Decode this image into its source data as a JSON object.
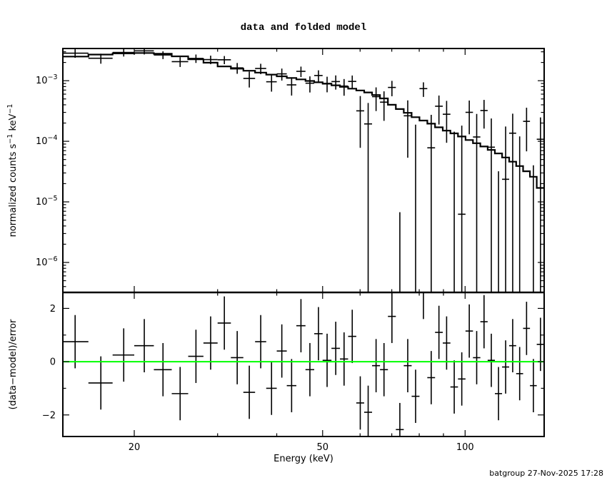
{
  "title": "data and folded model",
  "footer": "batgroup 27-Nov-2025 17:28",
  "colors": {
    "foreground": "#000000",
    "background": "#ffffff",
    "zero_line": "#00ff00"
  },
  "chart_data": {
    "type": "line",
    "title": "data and folded model",
    "xlabel": "Energy (keV)",
    "x_scale": "log",
    "x_range": [
      14.13,
      146.9
    ],
    "x_major_ticks": [
      20,
      50,
      100
    ],
    "x_minor_ticks": [
      30,
      40,
      60,
      70,
      80,
      90
    ],
    "panels": [
      {
        "name": "spectrum",
        "ylabel_parts": [
          {
            "t": "normalized counts s",
            "sup": false
          },
          {
            "t": "−1",
            "sup": true
          },
          {
            "t": " keV",
            "sup": false
          },
          {
            "t": "−1",
            "sup": true
          }
        ],
        "y_scale": "log",
        "y_range": [
          3.2e-07,
          0.0034
        ],
        "y_major_tick_exponents": [
          -3,
          -4,
          -5,
          -6
        ]
      },
      {
        "name": "residuals",
        "ylabel": "(data−model)/error",
        "y_scale": "linear",
        "y_range": [
          -2.81,
          2.6
        ],
        "y_major_ticks": [
          2,
          0,
          -2
        ],
        "y_minor_ticks": [
          1,
          -1
        ],
        "zero_line_color": "#00ff00",
        "residual_error": 1.0
      }
    ],
    "legend": "none",
    "grid": false,
    "bin_edges_keV": [
      14,
      16,
      18,
      20,
      22,
      24,
      26,
      28,
      30,
      32,
      34,
      36,
      38,
      40,
      42,
      44,
      46,
      48,
      50,
      52.2,
      54.4,
      56.6,
      58.9,
      61.2,
      63.6,
      66.1,
      68.7,
      71.4,
      74.2,
      77.1,
      80.1,
      83.2,
      86.4,
      89.7,
      93.1,
      96.6,
      100.2,
      103.9,
      107.7,
      111.6,
      115.6,
      119.7,
      123.9,
      128.2,
      132.6,
      137.1,
      141.7,
      146.9
    ],
    "model_counts": [
      0.0025,
      0.0027,
      0.00282,
      0.00287,
      0.00278,
      0.00252,
      0.00226,
      0.00198,
      0.00172,
      0.00158,
      0.00146,
      0.00136,
      0.00126,
      0.00118,
      0.00111,
      0.00105,
      0.00099,
      0.00094,
      0.00089,
      0.00084,
      0.00079,
      0.00074,
      0.00069,
      0.00064,
      0.00058,
      0.00051,
      0.0004,
      0.00034,
      0.000295,
      0.00025,
      0.00022,
      0.000195,
      0.00017,
      0.00015,
      0.000135,
      0.00012,
      0.000105,
      9.3e-05,
      8.2e-05,
      7.2e-05,
      6.3e-05,
      5.4e-05,
      4.6e-05,
      3.9e-05,
      3.2e-05,
      2.6e-05,
      1.7e-05
    ],
    "data_err": [
      0.00046,
      0.00044,
      0.00042,
      0.0004,
      0.00039,
      0.00038,
      0.00037,
      0.00036,
      0.00034,
      0.00033,
      0.00032,
      0.00031,
      0.0003,
      0.00029,
      0.000285,
      0.00028,
      0.00027,
      0.000265,
      0.00026,
      0.000255,
      0.00025,
      0.000245,
      0.00024,
      0.000235,
      0.00023,
      0.000225,
      0.00022,
      0.000215,
      0.00021,
      0.000205,
      0.0002,
      0.000195,
      0.00019,
      0.000185,
      0.00018,
      0.000175,
      0.00017,
      0.000165,
      0.00016,
      0.000158,
      0.000155,
      0.000152,
      0.00015,
      0.000148,
      0.000145,
      0.000142,
      0.00014
    ],
    "residual_sigma": [
      0.75,
      -0.8,
      0.25,
      0.6,
      -0.3,
      -1.2,
      0.2,
      0.7,
      1.45,
      0.15,
      -1.15,
      0.75,
      -1.0,
      0.4,
      -0.9,
      1.35,
      -0.3,
      1.05,
      0.05,
      0.5,
      0.1,
      0.95,
      -1.55,
      -1.9,
      -0.15,
      -0.3,
      1.7,
      -2.55,
      -0.15,
      -1.3,
      2.6,
      -0.6,
      1.1,
      0.7,
      -0.95,
      -0.65,
      1.15,
      0.15,
      1.5,
      0.05,
      -1.2,
      -0.2,
      0.6,
      -0.45,
      1.25,
      -0.9,
      0.65
    ],
    "note": "data point per bin = model_counts + residual_sigma × data_err; top-panel error bars are ±data_err, residual-panel error bars are ±1"
  }
}
